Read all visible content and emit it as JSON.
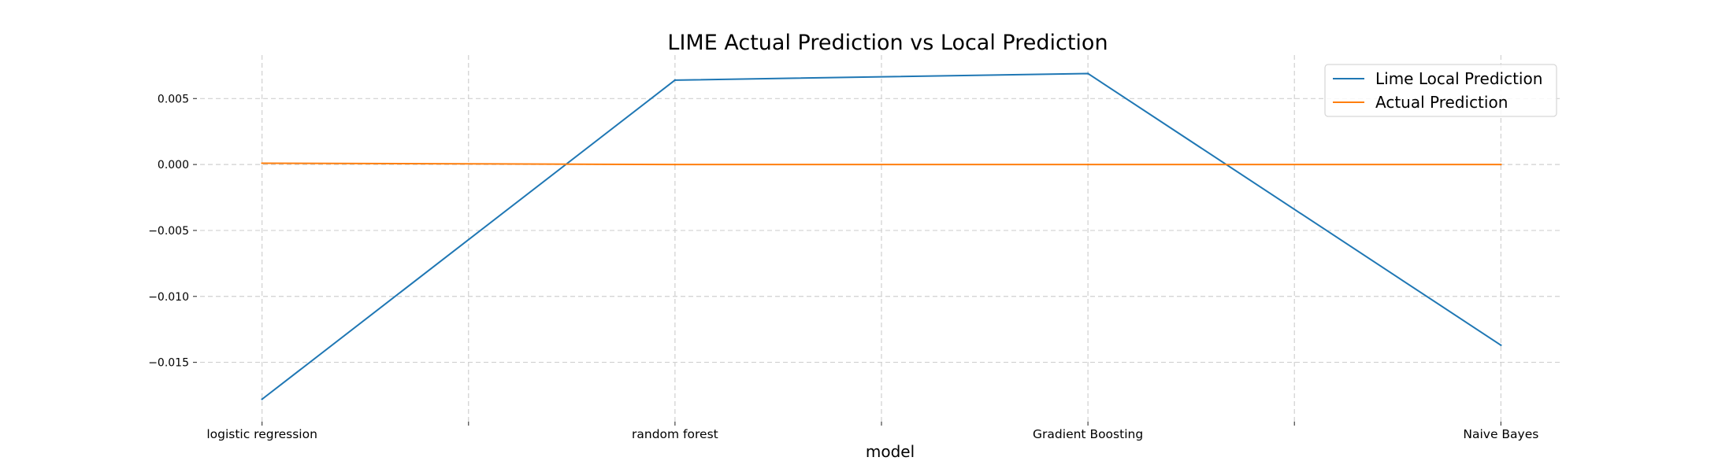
{
  "chart_data": {
    "type": "line",
    "title": "LIME Actual Prediction vs Local Prediction",
    "xlabel": "model",
    "ylabel": "",
    "categories": [
      "logistic regression",
      "random forest",
      "Gradient Boosting",
      "Naive Bayes"
    ],
    "x_ticks": [
      0,
      0.5,
      1,
      1.5,
      2,
      2.5,
      3
    ],
    "x_tick_labels": [
      "logistic regression",
      "",
      "random forest",
      "",
      "Gradient Boosting",
      "",
      "Naive Bayes"
    ],
    "xlim": [
      -0.15,
      3.15
    ],
    "ylim": [
      -0.0195,
      0.0083
    ],
    "y_ticks": [
      0.005,
      0.0,
      -0.005,
      -0.01,
      -0.015
    ],
    "y_tick_labels": [
      "0.005",
      "0.000",
      "−0.005",
      "−0.010",
      "−0.015"
    ],
    "grid": true,
    "legend_position": "top-right",
    "series": [
      {
        "name": "Lime Local Prediction",
        "color": "#1f77b4",
        "values": [
          -0.0178,
          0.0064,
          0.0069,
          -0.0137
        ]
      },
      {
        "name": "Actual Prediction",
        "color": "#ff7f0e",
        "values": [
          0.0001,
          0.0,
          0.0,
          0.0
        ]
      }
    ]
  }
}
